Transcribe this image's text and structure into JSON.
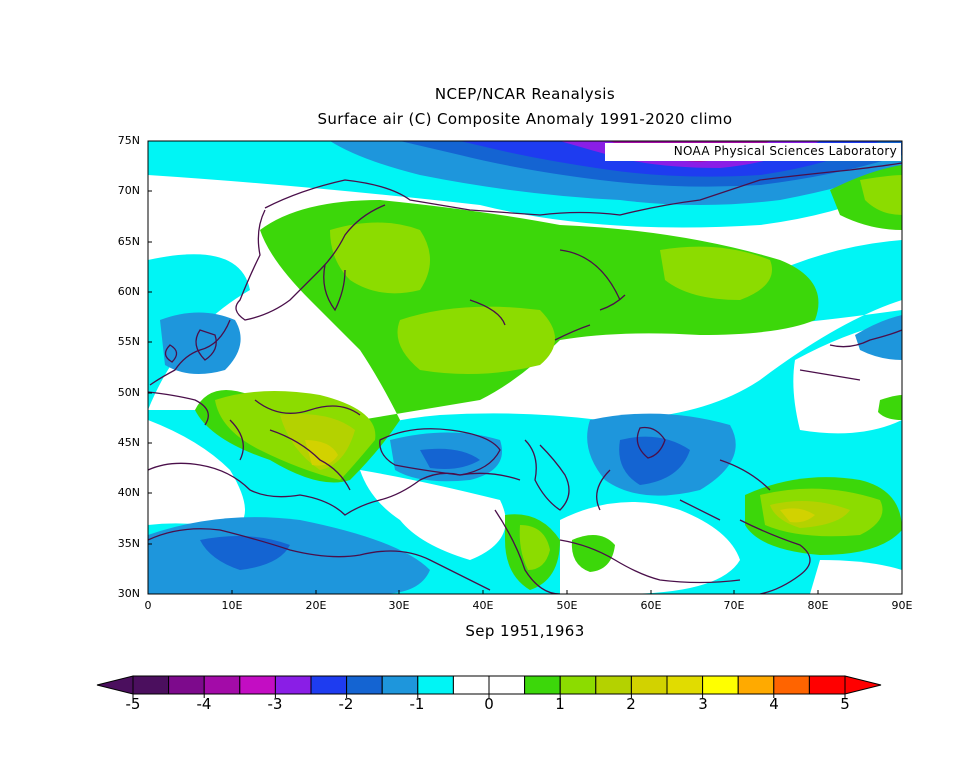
{
  "title": "NCEP/NCAR Reanalysis",
  "subtitle": "Surface air (C) Composite Anomaly 1991-2020 climo",
  "credit": "NOAA Physical Sciences Laboratory",
  "xcaption": "Sep 1951,1963",
  "lat_labels": [
    "75N",
    "70N",
    "65N",
    "60N",
    "55N",
    "50N",
    "45N",
    "40N",
    "35N",
    "30N"
  ],
  "lon_labels": [
    "0",
    "10E",
    "20E",
    "30E",
    "40E",
    "50E",
    "60E",
    "70E",
    "80E",
    "90E"
  ],
  "map": {
    "region": {
      "lon": [
        0,
        90
      ],
      "lat": [
        30,
        75
      ]
    },
    "fill_colors": {
      "-4.5": "#4b0f5e",
      "-4": "#7d0a8c",
      "-3.5": "#a30ba8",
      "-3": "#c30dc3",
      "-2.5": "#8a1ee6",
      "-2": "#1e3cf0",
      "-1.5": "#1464d2",
      "-1": "#1e96dc",
      "-0.5": "#00f5f5",
      "0": "#ffffff",
      "0.5": "#3cd70a",
      "1": "#8cdc00",
      "1.5": "#b4d200",
      "2": "#d2d200",
      "2.5": "#e1dc00",
      "3": "#ffff00",
      "3.5": "#ffaa00",
      "4": "#ff6400",
      "4.5": "#ff0000"
    }
  },
  "colorbar": {
    "labels": [
      "-5",
      "-4",
      "-3",
      "-2",
      "-1",
      "0",
      "1",
      "2",
      "3",
      "4",
      "5"
    ],
    "colors": [
      "#4b0f5e",
      "#7d0a8c",
      "#a30ba8",
      "#c30dc3",
      "#8a1ee6",
      "#1e3cf0",
      "#1464d2",
      "#1e96dc",
      "#00f5f5",
      "#ffffff",
      "#ffffff",
      "#3cd70a",
      "#8cdc00",
      "#b4d200",
      "#d2d200",
      "#e1dc00",
      "#ffff00",
      "#ffaa00",
      "#ff6400",
      "#ff0000"
    ],
    "under_color": "#4b0f5e",
    "over_color": "#ff0000"
  }
}
